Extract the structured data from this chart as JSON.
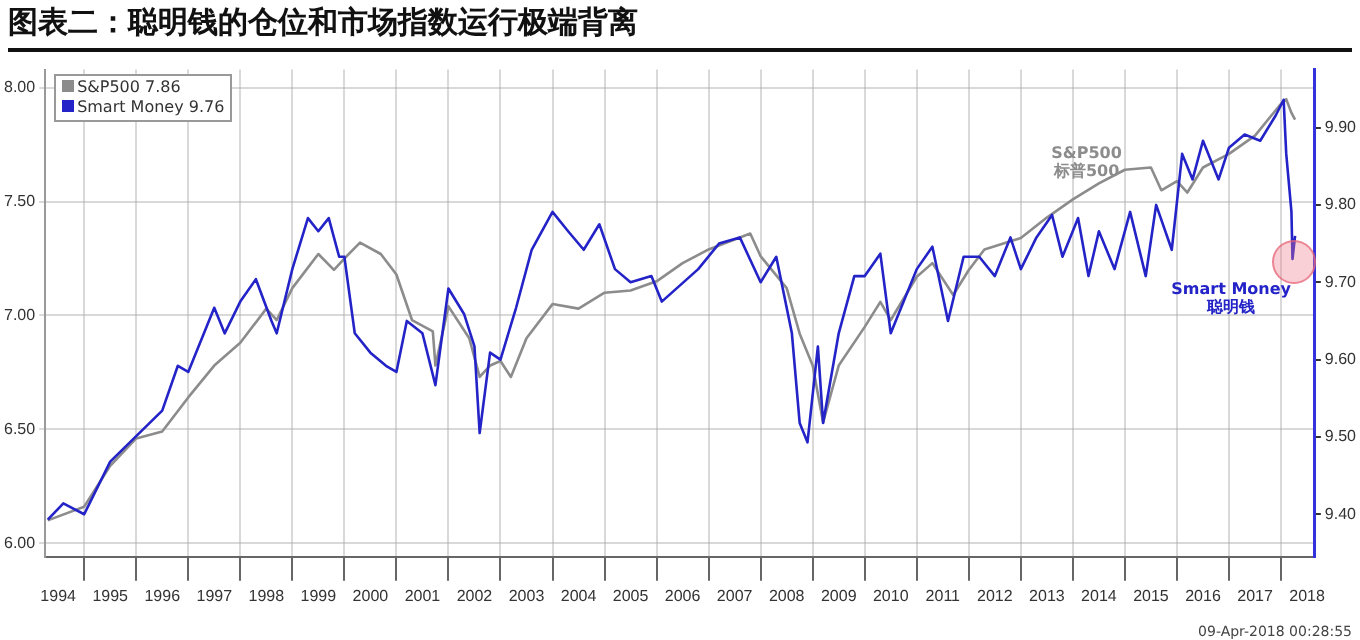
{
  "chart_data": {
    "type": "line",
    "title": "图表二：聪明钱的仓位和市场指数运行极端背离",
    "series": [
      {
        "name": "S&P500 7.86",
        "color": "#8c8c8c",
        "axis": "y",
        "x": [
          1994.3,
          1995.0,
          1995.5,
          1996.0,
          1996.5,
          1997.0,
          1997.5,
          1998.0,
          1998.5,
          1998.7,
          1999.0,
          1999.5,
          1999.8,
          2000.0,
          2000.3,
          2000.7,
          2001.0,
          2001.3,
          2001.7,
          2001.75,
          2002.0,
          2002.4,
          2002.6,
          2002.8,
          2003.0,
          2003.2,
          2003.5,
          2004.0,
          2004.5,
          2005.0,
          2005.5,
          2006.0,
          2006.5,
          2007.0,
          2007.8,
          2008.0,
          2008.5,
          2008.75,
          2009.0,
          2009.2,
          2009.5,
          2010.0,
          2010.3,
          2010.5,
          2011.0,
          2011.3,
          2011.7,
          2012.0,
          2012.3,
          2013.0,
          2013.5,
          2014.0,
          2014.5,
          2015.0,
          2015.5,
          2015.7,
          2016.0,
          2016.2,
          2016.5,
          2017.0,
          2017.5,
          2018.0,
          2018.1,
          2018.2,
          2018.27
        ],
        "values": [
          6.1,
          6.16,
          6.34,
          6.46,
          6.49,
          6.64,
          6.78,
          6.88,
          7.03,
          6.98,
          7.12,
          7.27,
          7.2,
          7.25,
          7.32,
          7.27,
          7.18,
          6.98,
          6.93,
          6.78,
          7.04,
          6.9,
          6.73,
          6.78,
          6.8,
          6.73,
          6.9,
          7.05,
          7.03,
          7.1,
          7.11,
          7.15,
          7.23,
          7.29,
          7.36,
          7.26,
          7.12,
          6.92,
          6.78,
          6.53,
          6.78,
          6.95,
          7.06,
          6.98,
          7.17,
          7.23,
          7.09,
          7.2,
          7.29,
          7.34,
          7.43,
          7.51,
          7.58,
          7.64,
          7.65,
          7.55,
          7.59,
          7.54,
          7.65,
          7.71,
          7.79,
          7.93,
          7.95,
          7.89,
          7.86
        ]
      },
      {
        "name": "Smart Money 9.76",
        "color": "#2323c8",
        "axis": "y2",
        "x": [
          1994.3,
          1994.6,
          1995.0,
          1995.5,
          1996.0,
          1996.5,
          1996.8,
          1997.0,
          1997.5,
          1997.7,
          1998.0,
          1998.3,
          1998.6,
          1998.7,
          1999.0,
          1999.3,
          1999.5,
          1999.7,
          1999.9,
          2000.0,
          2000.2,
          2000.5,
          2000.8,
          2001.0,
          2001.2,
          2001.5,
          2001.75,
          2002.0,
          2002.3,
          2002.5,
          2002.6,
          2002.8,
          2003.0,
          2003.3,
          2003.6,
          2004.0,
          2004.3,
          2004.6,
          2004.9,
          2005.2,
          2005.5,
          2005.9,
          2006.1,
          2006.8,
          2007.2,
          2007.6,
          2008.0,
          2008.3,
          2008.6,
          2008.75,
          2008.9,
          2009.1,
          2009.2,
          2009.5,
          2009.8,
          2010.0,
          2010.3,
          2010.5,
          2010.8,
          2011.0,
          2011.3,
          2011.6,
          2011.9,
          2012.2,
          2012.5,
          2012.8,
          2013.0,
          2013.3,
          2013.6,
          2013.8,
          2014.1,
          2014.3,
          2014.5,
          2014.8,
          2015.1,
          2015.4,
          2015.6,
          2015.9,
          2016.1,
          2016.3,
          2016.5,
          2016.8,
          2017.0,
          2017.3,
          2017.6,
          2017.9,
          2018.05,
          2018.1,
          2018.2,
          2018.22,
          2018.27
        ],
        "values": [
          9.393,
          9.414,
          9.4,
          9.468,
          9.501,
          9.534,
          9.592,
          9.584,
          9.667,
          9.634,
          9.675,
          9.704,
          9.65,
          9.634,
          9.717,
          9.783,
          9.766,
          9.783,
          9.733,
          9.733,
          9.634,
          9.609,
          9.592,
          9.584,
          9.65,
          9.634,
          9.567,
          9.692,
          9.659,
          9.617,
          9.505,
          9.609,
          9.6,
          9.667,
          9.742,
          9.791,
          9.766,
          9.742,
          9.775,
          9.717,
          9.7,
          9.708,
          9.675,
          9.717,
          9.75,
          9.758,
          9.7,
          9.733,
          9.634,
          9.518,
          9.493,
          9.617,
          9.518,
          9.634,
          9.708,
          9.708,
          9.737,
          9.634,
          9.684,
          9.717,
          9.746,
          9.65,
          9.733,
          9.733,
          9.708,
          9.758,
          9.717,
          9.758,
          9.787,
          9.733,
          9.783,
          9.708,
          9.766,
          9.717,
          9.791,
          9.708,
          9.8,
          9.742,
          9.866,
          9.833,
          9.883,
          9.833,
          9.874,
          9.891,
          9.883,
          9.916,
          9.936,
          9.866,
          9.791,
          9.73,
          9.76
        ]
      }
    ],
    "xlim": [
      1994.25,
      2018.65
    ],
    "xticks": [
      {
        "value": 1994.5,
        "label": "1994"
      },
      {
        "value": 1995,
        "label": null
      },
      {
        "value": 1995.5,
        "label": "1995"
      },
      {
        "value": 1996,
        "label": null
      },
      {
        "value": 1996.5,
        "label": "1996"
      },
      {
        "value": 1997,
        "label": null
      },
      {
        "value": 1997.5,
        "label": "1997"
      },
      {
        "value": 1998,
        "label": null
      },
      {
        "value": 1998.5,
        "label": "1998"
      },
      {
        "value": 1999,
        "label": null
      },
      {
        "value": 1999.5,
        "label": "1999"
      },
      {
        "value": 2000,
        "label": null
      },
      {
        "value": 2000.5,
        "label": "2000"
      },
      {
        "value": 2001,
        "label": null
      },
      {
        "value": 2001.5,
        "label": "2001"
      },
      {
        "value": 2002,
        "label": null
      },
      {
        "value": 2002.5,
        "label": "2002"
      },
      {
        "value": 2003,
        "label": null
      },
      {
        "value": 2003.5,
        "label": "2003"
      },
      {
        "value": 2004,
        "label": null
      },
      {
        "value": 2004.5,
        "label": "2004"
      },
      {
        "value": 2005,
        "label": null
      },
      {
        "value": 2005.5,
        "label": "2005"
      },
      {
        "value": 2006,
        "label": null
      },
      {
        "value": 2006.5,
        "label": "2006"
      },
      {
        "value": 2007,
        "label": null
      },
      {
        "value": 2007.5,
        "label": "2007"
      },
      {
        "value": 2008,
        "label": null
      },
      {
        "value": 2008.5,
        "label": "2008"
      },
      {
        "value": 2009,
        "label": null
      },
      {
        "value": 2009.5,
        "label": "2009"
      },
      {
        "value": 2010,
        "label": null
      },
      {
        "value": 2010.5,
        "label": "2010"
      },
      {
        "value": 2011,
        "label": null
      },
      {
        "value": 2011.5,
        "label": "2011"
      },
      {
        "value": 2012,
        "label": null
      },
      {
        "value": 2012.5,
        "label": "2012"
      },
      {
        "value": 2013,
        "label": null
      },
      {
        "value": 2013.5,
        "label": "2013"
      },
      {
        "value": 2014,
        "label": null
      },
      {
        "value": 2014.5,
        "label": "2014"
      },
      {
        "value": 2015,
        "label": null
      },
      {
        "value": 2015.5,
        "label": "2015"
      },
      {
        "value": 2016,
        "label": null
      },
      {
        "value": 2016.5,
        "label": "2016"
      },
      {
        "value": 2017,
        "label": null
      },
      {
        "value": 2017.5,
        "label": "2017"
      },
      {
        "value": 2018,
        "label": null
      },
      {
        "value": 2018.5,
        "label": "2018"
      }
    ],
    "ylim": [
      5.94,
      8.08
    ],
    "yticks": [
      {
        "value": 6,
        "label": "6.00"
      },
      {
        "value": 6.5,
        "label": "6.50"
      },
      {
        "value": 7,
        "label": "7.00"
      },
      {
        "value": 7.5,
        "label": "7.50"
      },
      {
        "value": 8,
        "label": "8.00"
      }
    ],
    "y2lim": [
      9.345,
      9.975
    ],
    "y2ticks": [
      {
        "value": 9.4,
        "label": "9.40"
      },
      {
        "value": 9.5,
        "label": "9.50"
      },
      {
        "value": 9.6,
        "label": "9.60"
      },
      {
        "value": 9.7,
        "label": "9.70"
      },
      {
        "value": 9.8,
        "label": "9.80"
      },
      {
        "value": 9.9,
        "label": "9.90"
      }
    ],
    "grid": true,
    "legend": "top left",
    "annotations": [
      "S&P500\n标普500",
      "Smart Money\n聪明钱",
      "09-Apr-2018 00:28:55"
    ]
  }
}
